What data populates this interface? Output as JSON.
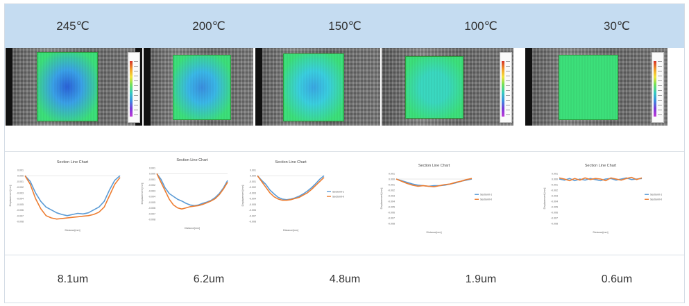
{
  "header": {
    "temperatures": [
      "245℃",
      "200℃",
      "150℃",
      "100℃",
      "30℃"
    ]
  },
  "images": [
    {
      "icon": "deformation-map-icon",
      "colors": {
        "center": "#2b62d8",
        "mid": "#3aa2e8",
        "edge": "#3ce07a"
      }
    },
    {
      "icon": "deformation-map-icon",
      "colors": {
        "center": "#3a8fe0",
        "mid": "#3ab8e8",
        "edge": "#3ce07a"
      }
    },
    {
      "icon": "deformation-map-icon",
      "colors": {
        "center": "#3aa8e4",
        "mid": "#3acfe0",
        "edge": "#3ce07a"
      }
    },
    {
      "icon": "deformation-map-icon",
      "colors": {
        "center": "#3ad8c0",
        "mid": "#3ad8c0",
        "edge": "#3ce07a"
      }
    },
    {
      "icon": "deformation-map-icon",
      "colors": {
        "center": "#3ce07a",
        "mid": "#3ce07a",
        "edge": "#3ce07a"
      }
    }
  ],
  "results": [
    "8.1um",
    "6.2um",
    "4.8um",
    "1.9um",
    "0.6um"
  ],
  "chart_data": [
    {
      "type": "line",
      "title": "Section Line Chart",
      "xlabel": "Distance[mm]",
      "ylabel": "Displacement [mm]",
      "yticks": [
        "0.001",
        "0.000",
        "-0.001",
        "-0.002",
        "-0.003",
        "-0.004",
        "-0.005",
        "-0.006",
        "-0.007",
        "-0.008"
      ],
      "ylim": [
        -0.008,
        0.001
      ],
      "colors": [
        "#5b9bd5",
        "#ed7d31"
      ],
      "series": [
        {
          "values": [
            0.0,
            -0.001,
            -0.003,
            -0.0045,
            -0.0055,
            -0.006,
            -0.0065,
            -0.0068,
            -0.007,
            -0.0068,
            -0.0066,
            -0.0067,
            -0.0065,
            -0.006,
            -0.0055,
            -0.0045,
            -0.0025,
            -0.0008,
            0.0
          ]
        },
        {
          "values": [
            0.0,
            -0.0015,
            -0.004,
            -0.0058,
            -0.007,
            -0.0074,
            -0.0076,
            -0.0075,
            -0.0074,
            -0.0073,
            -0.0072,
            -0.0071,
            -0.007,
            -0.0068,
            -0.0064,
            -0.0055,
            -0.0035,
            -0.0015,
            -0.0003
          ]
        }
      ]
    },
    {
      "type": "line",
      "title": "Section Line Chart",
      "xlabel": "Distance[mm]",
      "ylabel": "Displacement [mm]",
      "yticks": [
        "0.001",
        "0.000",
        "-0.001",
        "-0.002",
        "-0.003",
        "-0.004",
        "-0.005",
        "-0.006",
        "-0.007",
        "-0.008"
      ],
      "ylim": [
        -0.008,
        0.001
      ],
      "colors": [
        "#5b9bd5",
        "#ed7d31"
      ],
      "series": [
        {
          "values": [
            0.0,
            -0.001,
            -0.0025,
            -0.0035,
            -0.004,
            -0.0045,
            -0.0048,
            -0.0052,
            -0.0055,
            -0.0056,
            -0.0055,
            -0.0052,
            -0.005,
            -0.0047,
            -0.0042,
            -0.0035,
            -0.0025,
            -0.0012
          ]
        },
        {
          "values": [
            0.0,
            -0.0015,
            -0.003,
            -0.0045,
            -0.0055,
            -0.006,
            -0.0062,
            -0.006,
            -0.0058,
            -0.0057,
            -0.0056,
            -0.0054,
            -0.0051,
            -0.0048,
            -0.0044,
            -0.0037,
            -0.0027,
            -0.0015
          ]
        }
      ]
    },
    {
      "type": "line",
      "title": "Section Line Chart",
      "xlabel": "Distance[mm]",
      "ylabel": "Displacement [mm]",
      "yticks": [
        "0.001",
        "0.000",
        "-0.001",
        "-0.002",
        "-0.003",
        "-0.004",
        "-0.005",
        "-0.006",
        "-0.007",
        "-0.008"
      ],
      "ylim": [
        -0.008,
        0.001
      ],
      "legend": [
        "Section0-1",
        "Section0-0"
      ],
      "colors": [
        "#5b9bd5",
        "#ed7d31"
      ],
      "series": [
        {
          "values": [
            0.0,
            -0.0008,
            -0.0015,
            -0.0025,
            -0.0032,
            -0.0038,
            -0.0041,
            -0.0042,
            -0.0041,
            -0.0039,
            -0.0036,
            -0.0032,
            -0.0027,
            -0.0021,
            -0.0014,
            -0.0006,
            0.0
          ]
        },
        {
          "values": [
            0.0,
            -0.001,
            -0.002,
            -0.003,
            -0.0037,
            -0.0041,
            -0.0043,
            -0.0043,
            -0.0042,
            -0.004,
            -0.0038,
            -0.0034,
            -0.003,
            -0.0024,
            -0.0017,
            -0.001,
            -0.0003
          ]
        }
      ]
    },
    {
      "type": "line",
      "title": "Section Line Chart",
      "xlabel": "Distance[mm]",
      "ylabel": "Displacement [mm]",
      "yticks": [
        "0.001",
        "0.000",
        "-0.001",
        "-0.002",
        "-0.003",
        "-0.004",
        "-0.005",
        "-0.006",
        "-0.007",
        "-0.008"
      ],
      "ylim": [
        -0.008,
        0.001
      ],
      "legend": [
        "Section0-1",
        "Section0-0"
      ],
      "colors": [
        "#5b9bd5",
        "#ed7d31"
      ],
      "series": [
        {
          "values": [
            0.0,
            -0.0003,
            -0.0006,
            -0.0009,
            -0.0011,
            -0.0012,
            -0.0013,
            -0.0012,
            -0.0012,
            -0.0011,
            -0.0009,
            -0.0007,
            -0.0004,
            -0.0002,
            0.0
          ]
        },
        {
          "values": [
            0.0,
            -0.0004,
            -0.0008,
            -0.0011,
            -0.0013,
            -0.0012,
            -0.0013,
            -0.0014,
            -0.0012,
            -0.001,
            -0.0009,
            -0.0006,
            -0.0004,
            -0.0001,
            0.0001
          ]
        }
      ]
    },
    {
      "type": "line",
      "title": "Section Line Chart",
      "xlabel": "Distance[mm]",
      "ylabel": "Displacement [mm]",
      "yticks": [
        "0.001",
        "0.000",
        "-0.001",
        "-0.002",
        "-0.003",
        "-0.004",
        "-0.005",
        "-0.006",
        "-0.007",
        "-0.008"
      ],
      "ylim": [
        -0.008,
        0.001
      ],
      "legend": [
        "Section0-1",
        "Section0-0"
      ],
      "colors": [
        "#5b9bd5",
        "#ed7d31"
      ],
      "series": [
        {
          "values": [
            0.0,
            -0.0002,
            0.0001,
            -0.0003,
            0.0,
            -0.0002,
            0.0001,
            -0.0001,
            -0.0003,
            0.0,
            0.0001,
            -0.0002,
            0.0,
            0.0002,
            -0.0001,
            0.0,
            0.0001
          ]
        },
        {
          "values": [
            0.0002,
            0.0,
            -0.0003,
            0.0001,
            -0.0002,
            0.0002,
            -0.0001,
            0.0001,
            0.0,
            -0.0003,
            0.0002,
            0.0,
            -0.0002,
            0.0001,
            0.0003,
            -0.0001,
            0.0002
          ]
        }
      ]
    }
  ]
}
